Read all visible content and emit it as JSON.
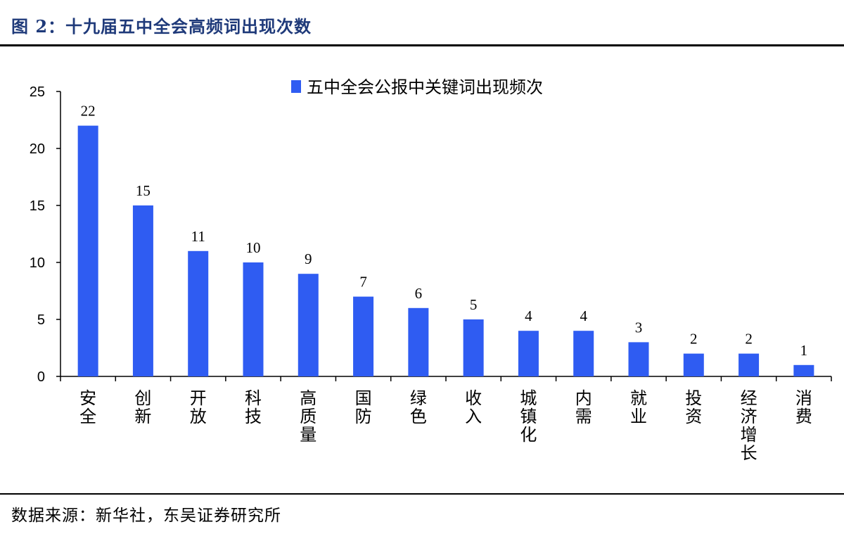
{
  "figure": {
    "title": "图 2：十九届五中全会高频词出现次数",
    "source": "数据来源：新华社，东吴证券研究所"
  },
  "colors": {
    "bar": "#2f5cf2",
    "title": "#1f3a7a"
  },
  "chart_data": {
    "type": "bar",
    "legend": "五中全会公报中关键词出现频次",
    "legend_position": "top",
    "categories": [
      "安全",
      "创新",
      "开放",
      "科技",
      "高质量",
      "国防",
      "绿色",
      "收入",
      "城镇化",
      "内需",
      "就业",
      "投资",
      "经济增长",
      "消费"
    ],
    "series": [
      {
        "name": "五中全会公报中关键词出现频次",
        "values": [
          22,
          15,
          11,
          10,
          9,
          7,
          6,
          5,
          4,
          4,
          3,
          2,
          2,
          1
        ]
      }
    ],
    "ylim": [
      0,
      25
    ],
    "yticks": [
      0,
      5,
      10,
      15,
      20,
      25
    ],
    "grid": false,
    "data_labels": true
  }
}
